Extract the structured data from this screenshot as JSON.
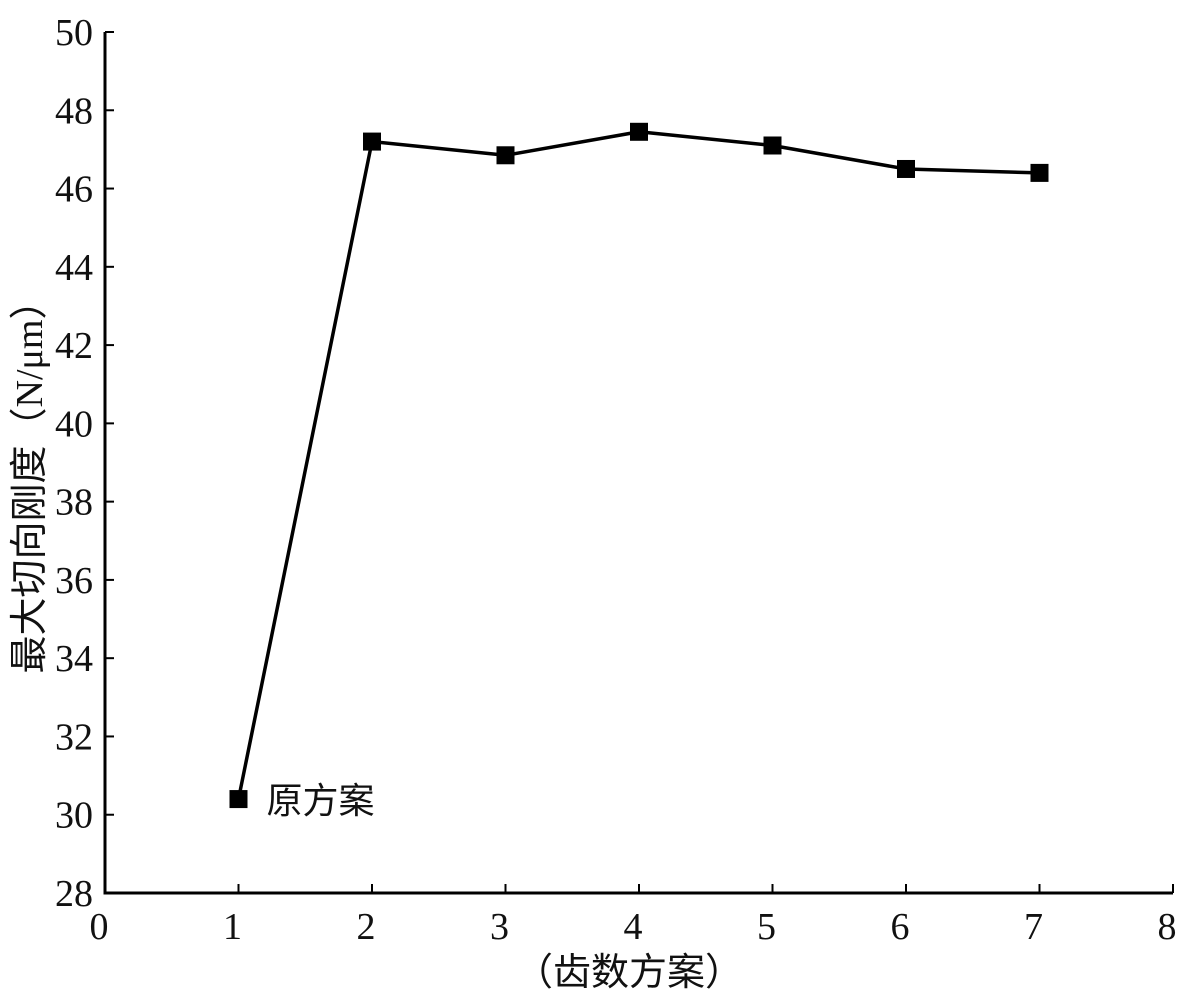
{
  "chart_data": {
    "type": "line",
    "title": "",
    "xlabel": "（齿数方案）",
    "ylabel": "最大切向刚度（N/μm）",
    "xlim": [
      0,
      8
    ],
    "ylim": [
      28,
      50
    ],
    "x_ticks": [
      "0",
      "1",
      "2",
      "3",
      "4",
      "5",
      "6",
      "7",
      "8"
    ],
    "y_ticks": [
      "28",
      "30",
      "32",
      "34",
      "36",
      "38",
      "40",
      "42",
      "44",
      "46",
      "48",
      "50"
    ],
    "grid": false,
    "legend": "none",
    "series": [
      {
        "x": [
          1,
          2,
          3,
          4,
          5,
          6,
          7
        ],
        "values": [
          30.4,
          47.2,
          46.85,
          47.45,
          47.1,
          46.5,
          46.4
        ],
        "marker": "square",
        "color": "#000000"
      }
    ],
    "annotations": [
      {
        "text": "原方案",
        "x": 1,
        "y": 30.4
      }
    ]
  }
}
